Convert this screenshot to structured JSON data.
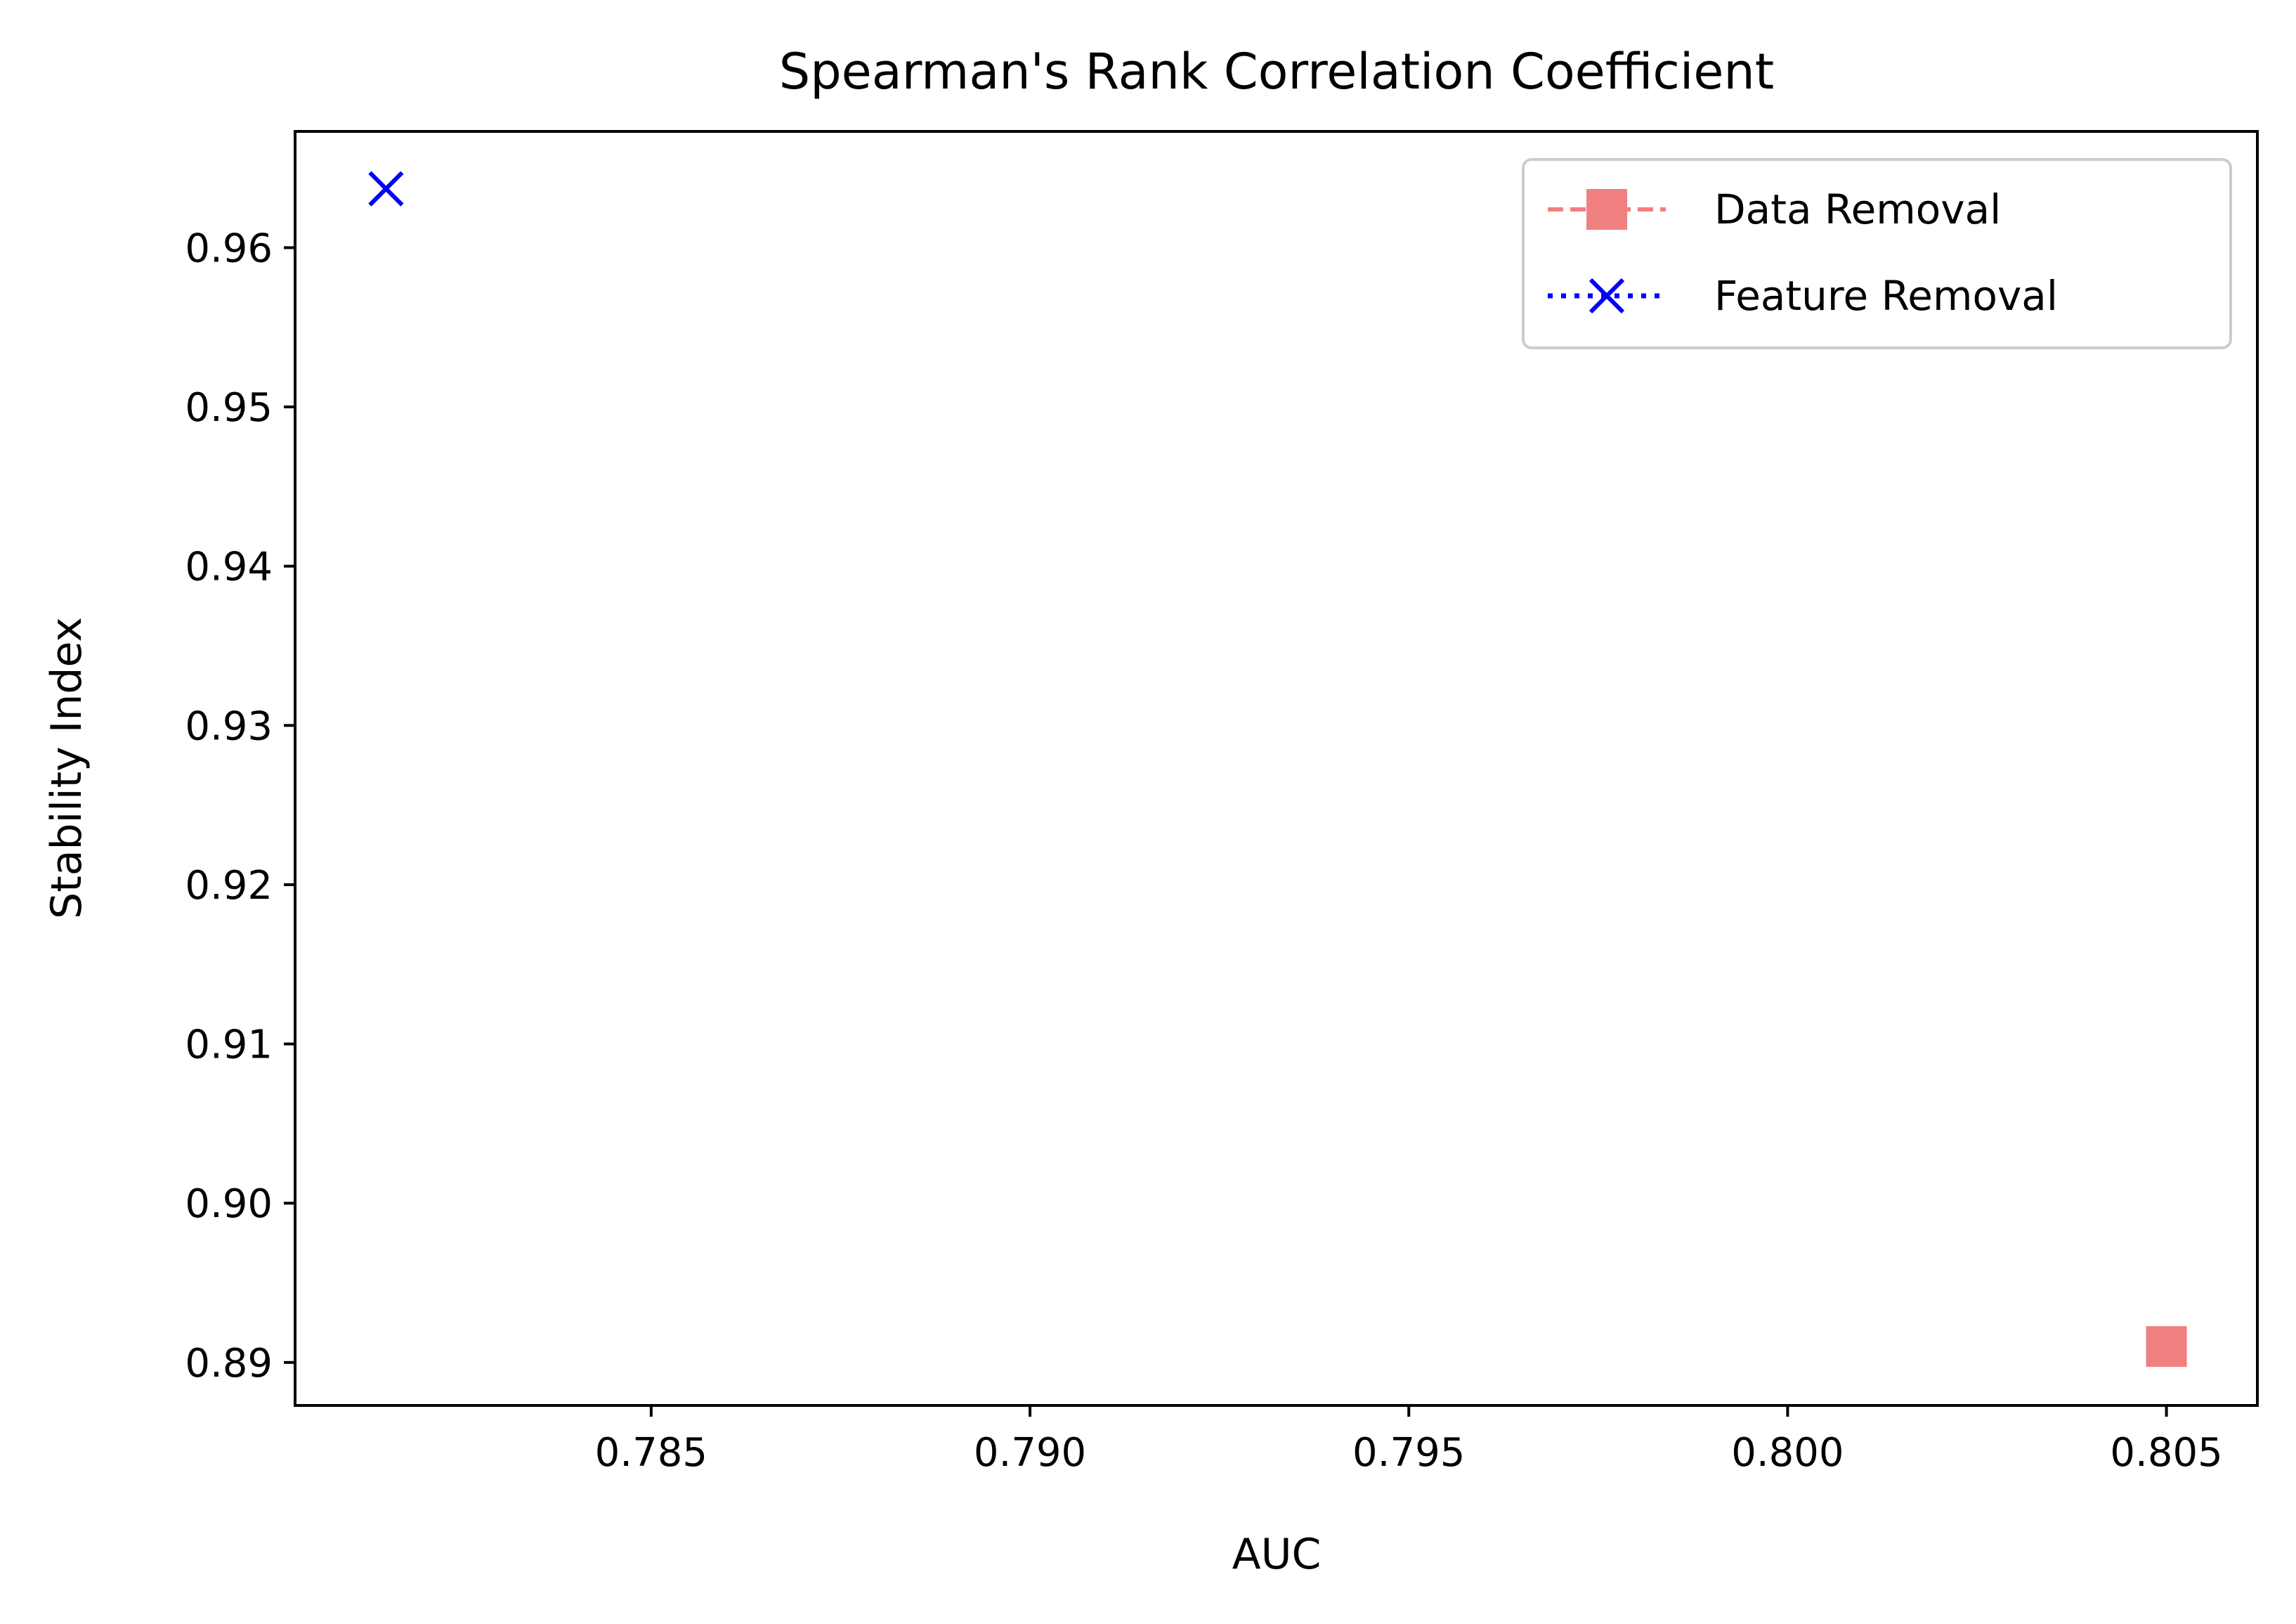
{
  "chart_data": {
    "type": "scatter",
    "title": "Spearman's Rank Correlation Coefficient",
    "xlabel": "AUC",
    "ylabel": "Stability Index",
    "xlim": [
      0.7803,
      0.8062
    ],
    "ylim": [
      0.8873,
      0.9673
    ],
    "xticks": [
      0.785,
      0.79,
      0.795,
      0.8,
      0.805
    ],
    "xtick_labels": [
      "0.785",
      "0.790",
      "0.795",
      "0.800",
      "0.805"
    ],
    "yticks": [
      0.89,
      0.9,
      0.91,
      0.92,
      0.93,
      0.94,
      0.95,
      0.96
    ],
    "ytick_labels": [
      "0.89",
      "0.90",
      "0.91",
      "0.92",
      "0.93",
      "0.94",
      "0.95",
      "0.96"
    ],
    "grid": false,
    "legend_position": "top-right",
    "series": [
      {
        "name": "Data Removal",
        "marker": "square",
        "line_style": "dashed",
        "color": "#f08080",
        "points": [
          {
            "x": 0.805,
            "y": 0.891
          }
        ]
      },
      {
        "name": "Feature Removal",
        "marker": "x",
        "line_style": "dotted",
        "color": "#0000ff",
        "points": [
          {
            "x": 0.7815,
            "y": 0.9637
          }
        ]
      }
    ]
  }
}
